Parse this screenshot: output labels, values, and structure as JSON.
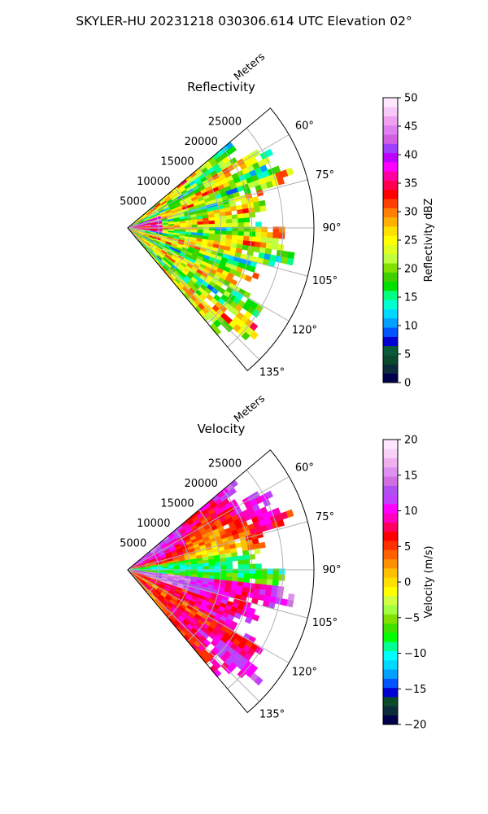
{
  "title": "SKYLER-HU  20231218  030306.614 UTC Elevation 02°",
  "colors": {
    "reflectivity_scale": [
      "#00004a",
      "#0b2b3a",
      "#0a4a2a",
      "#0a5a3a",
      "#0000d0",
      "#0055ff",
      "#00a0ff",
      "#00d8ff",
      "#00ffd0",
      "#00ff80",
      "#00e000",
      "#40d000",
      "#80e000",
      "#c0ff40",
      "#e0ff20",
      "#ffff00",
      "#ffe000",
      "#ffb000",
      "#ff8000",
      "#ff4000",
      "#ff0000",
      "#ff0050",
      "#ff00a0",
      "#ff00ff",
      "#c000ff",
      "#a040ff",
      "#d060e0",
      "#e080f0",
      "#f0a0f0",
      "#f8c8f8",
      "#ffe8ff"
    ],
    "velocity_scale": [
      "#00004a",
      "#0b2b3a",
      "#0a4a2a",
      "#0000d0",
      "#0055ff",
      "#00a0ff",
      "#00d8ff",
      "#00ffff",
      "#00ff90",
      "#00ff00",
      "#40e000",
      "#80e000",
      "#a0ff40",
      "#d0ff40",
      "#ffff00",
      "#ffe000",
      "#ffc000",
      "#ff9000",
      "#ff6000",
      "#ff3000",
      "#ff0000",
      "#ff0060",
      "#ff00c0",
      "#ff00ff",
      "#c040ff",
      "#b050f0",
      "#d070e0",
      "#e090f0",
      "#f0b0f0",
      "#f8d0f8",
      "#ffe8ff"
    ]
  },
  "chart_data": [
    {
      "type": "heatmap",
      "projection": "polar-sector",
      "title": "Reflectivity",
      "radial_label": "Meters",
      "radial_ticks": [
        5000,
        10000,
        15000,
        20000,
        25000
      ],
      "radial_range": [
        0,
        30000
      ],
      "azimuth_range": [
        50,
        140
      ],
      "azimuth_ticks": [
        "60°",
        "75°",
        "90°",
        "105°",
        "120°",
        "135°"
      ],
      "azimuth_tick_values": [
        60,
        75,
        90,
        105,
        120,
        135
      ],
      "colorbar": {
        "label": "Reflectivity dBZ",
        "range": [
          0,
          50
        ],
        "ticks": [
          "0",
          "5",
          "10",
          "15",
          "20",
          "25",
          "30",
          "35",
          "40",
          "45",
          "50"
        ]
      },
      "grid": true
    },
    {
      "type": "heatmap",
      "projection": "polar-sector",
      "title": "Velocity",
      "radial_label": "Meters",
      "radial_ticks": [
        5000,
        10000,
        15000,
        20000,
        25000
      ],
      "radial_range": [
        0,
        30000
      ],
      "azimuth_range": [
        50,
        140
      ],
      "azimuth_ticks": [
        "60°",
        "75°",
        "90°",
        "105°",
        "120°",
        "135°"
      ],
      "azimuth_tick_values": [
        60,
        75,
        90,
        105,
        120,
        135
      ],
      "colorbar": {
        "label": "Velocity (m/s)",
        "range": [
          -20,
          20
        ],
        "ticks": [
          "−20",
          "−15",
          "−10",
          "−5",
          "0",
          "5",
          "10",
          "15",
          "20"
        ]
      },
      "grid": true
    }
  ]
}
